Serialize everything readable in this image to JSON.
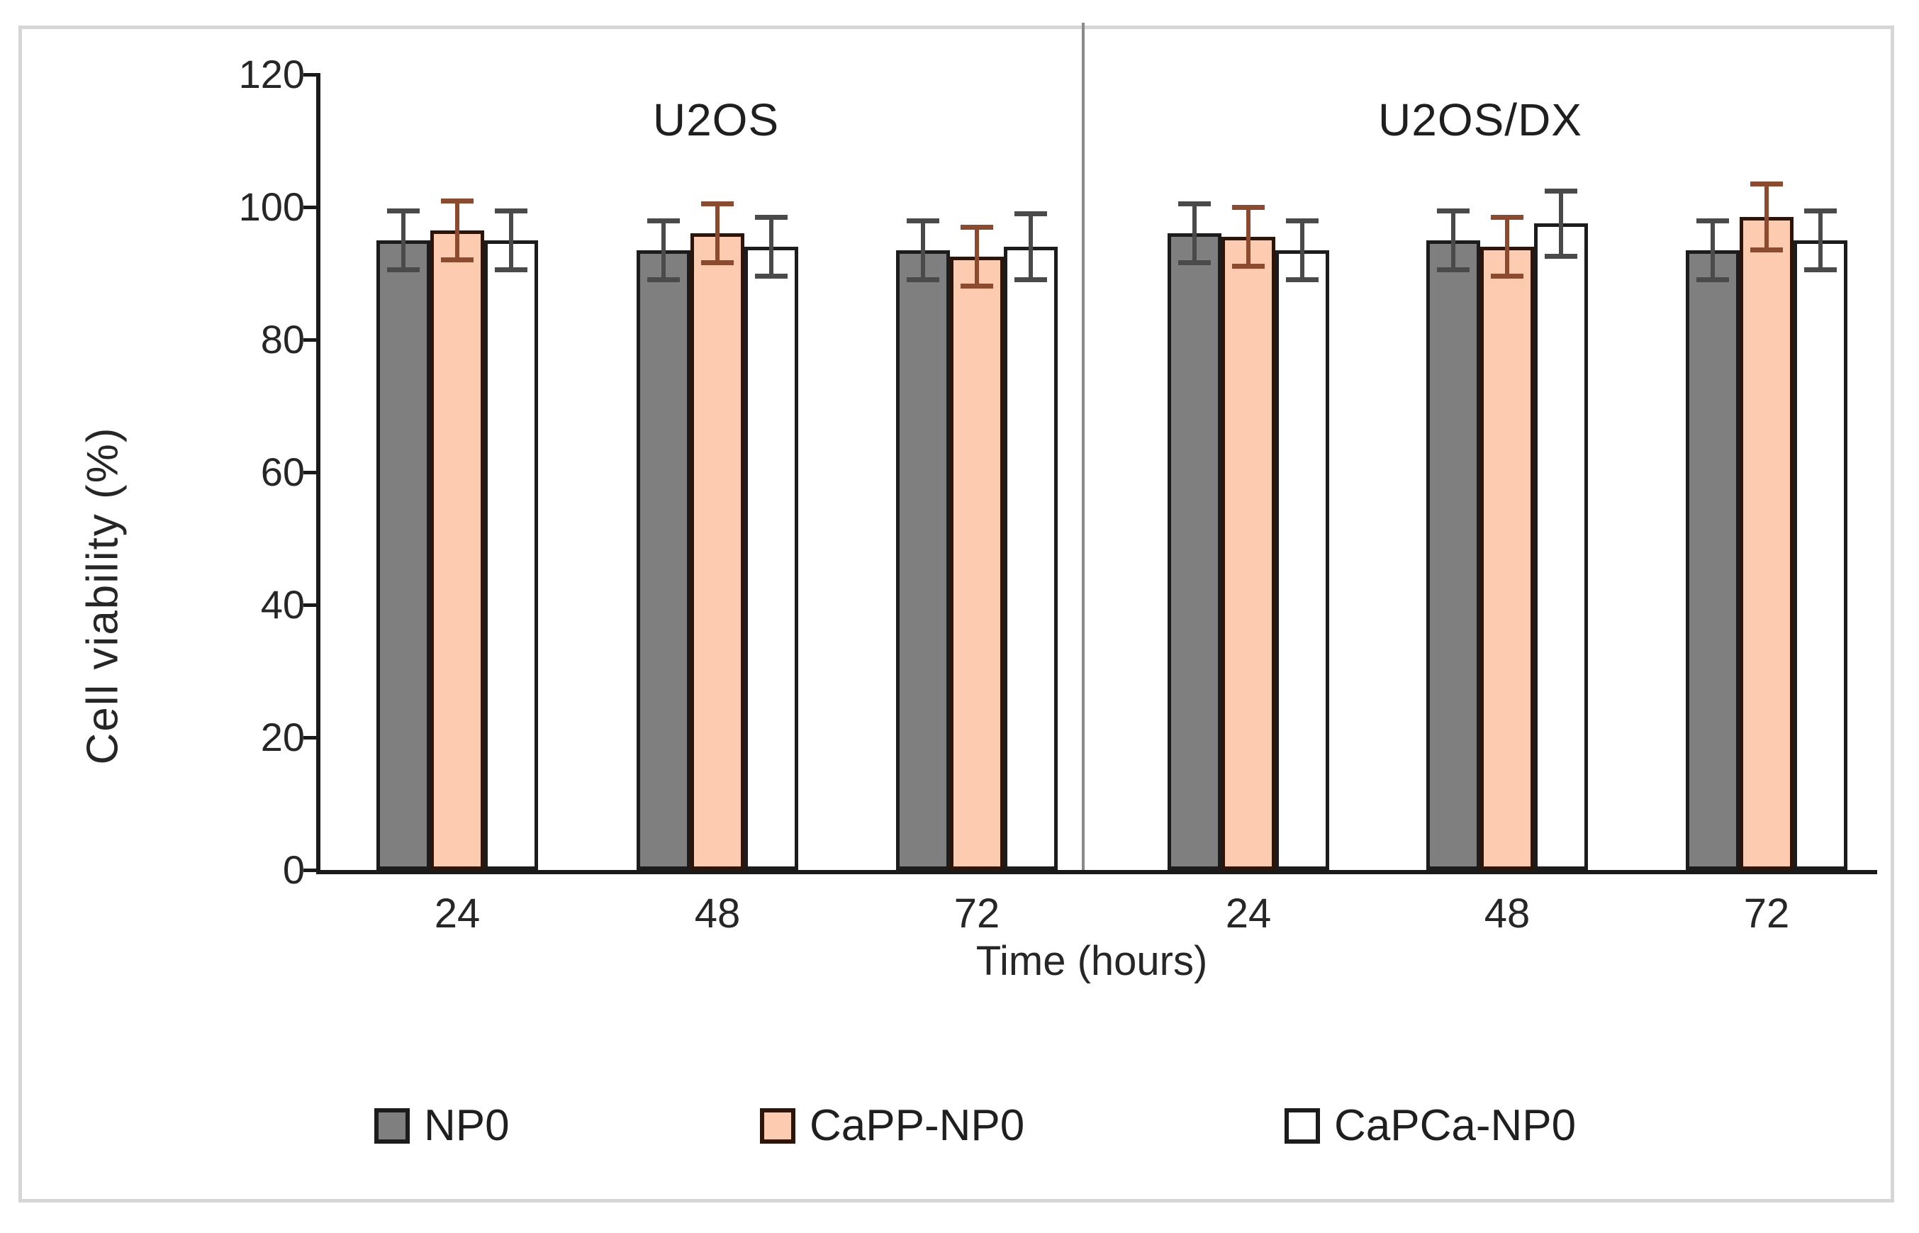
{
  "chart_data": {
    "type": "bar",
    "title": "",
    "ylabel": "Cell viability (%)",
    "xlabel": "Time (hours)",
    "ylim": [
      0,
      120
    ],
    "yticks": [
      0,
      20,
      40,
      60,
      80,
      100,
      120
    ],
    "grid": false,
    "legend_position": "bottom",
    "group_panels": [
      "U2OS",
      "U2OS/DX"
    ],
    "categories": [
      "24",
      "48",
      "72",
      "24",
      "48",
      "72"
    ],
    "series": [
      {
        "name": "NP0",
        "fill": "#7f7f7f",
        "edge": "#1c1c1c",
        "error_color": "#4a4a4a",
        "values": [
          95,
          93.5,
          93.5,
          96,
          95,
          93.5
        ],
        "errors": [
          4.5,
          4.5,
          4.5,
          4.5,
          4.5,
          4.5
        ]
      },
      {
        "name": "CaPP-NP0",
        "fill": "#fccbb0",
        "edge": "#2e150a",
        "error_color": "#8c4b2f",
        "values": [
          96.5,
          96,
          92.5,
          95.5,
          94,
          98.5
        ],
        "errors": [
          4.5,
          4.5,
          4.5,
          4.5,
          4.5,
          5
        ]
      },
      {
        "name": "CaPCa-NP0",
        "fill": "#ffffff",
        "edge": "#1c1c1c",
        "error_color": "#4a4a4a",
        "values": [
          95,
          94,
          94,
          93.5,
          97.5,
          95
        ],
        "errors": [
          4.5,
          4.5,
          5,
          4.5,
          5,
          4.5
        ]
      }
    ],
    "axis_color": "#1a1a1a",
    "divider_color": "#8a8a8a",
    "frame_color": "#d6d6d6",
    "text_color": "#262626"
  }
}
